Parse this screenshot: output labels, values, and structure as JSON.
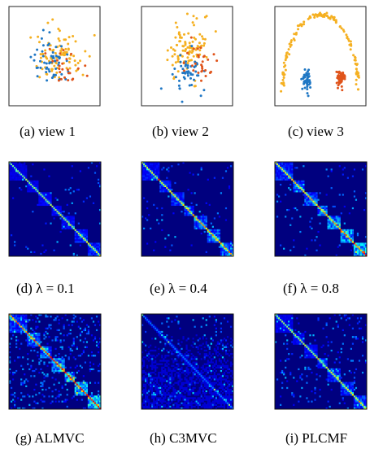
{
  "figure": {
    "panels": [
      {
        "id": "view1",
        "caption": "(a)  view 1"
      },
      {
        "id": "view2",
        "caption": "(b)  view 2"
      },
      {
        "id": "view3",
        "caption": "(c)  view 3"
      },
      {
        "id": "lambda01",
        "caption": "(d)  λ = 0.1"
      },
      {
        "id": "lambda04",
        "caption": "(e)  λ = 0.4"
      },
      {
        "id": "lambda08",
        "caption": "(f)  λ = 0.8"
      },
      {
        "id": "almvc",
        "caption": "(g)  ALMVC"
      },
      {
        "id": "c3mvc",
        "caption": "(h)  C3MVC"
      },
      {
        "id": "plcmf",
        "caption": "(i)  PLCMF"
      }
    ]
  },
  "chart_data": [
    {
      "type": "scatter",
      "panel": "view1",
      "series_colors": {
        "cluster1": "#f5b021",
        "cluster2": "#1f77c4",
        "cluster3": "#e0541b"
      },
      "clusters": [
        {
          "color_key": "cluster1",
          "count": 90,
          "center": [
            0.55,
            0.48
          ],
          "spread": [
            0.25,
            0.25
          ],
          "shape": "blob"
        },
        {
          "color_key": "cluster2",
          "count": 55,
          "center": [
            0.45,
            0.55
          ],
          "spread": [
            0.2,
            0.22
          ],
          "shape": "blob"
        },
        {
          "color_key": "cluster3",
          "count": 25,
          "center": [
            0.6,
            0.6
          ],
          "spread": [
            0.2,
            0.2
          ],
          "shape": "blob"
        }
      ]
    },
    {
      "type": "scatter",
      "panel": "view2",
      "series_colors": {
        "cluster1": "#f5b021",
        "cluster2": "#1f77c4",
        "cluster3": "#e0541b"
      },
      "clusters": [
        {
          "color_key": "cluster1",
          "count": 100,
          "center": [
            0.5,
            0.45
          ],
          "spread": [
            0.22,
            0.3
          ],
          "shape": "blob"
        },
        {
          "color_key": "cluster2",
          "count": 50,
          "center": [
            0.5,
            0.65
          ],
          "spread": [
            0.2,
            0.22
          ],
          "shape": "blob"
        },
        {
          "color_key": "cluster3",
          "count": 30,
          "center": [
            0.6,
            0.6
          ],
          "spread": [
            0.2,
            0.22
          ],
          "shape": "blob"
        }
      ]
    },
    {
      "type": "scatter",
      "panel": "view3",
      "series_colors": {
        "cluster1": "#f5b021",
        "cluster2": "#1f77c4",
        "cluster3": "#e0541b"
      },
      "clusters": [
        {
          "color_key": "cluster1",
          "count": 130,
          "center": [
            0.5,
            0.9
          ],
          "spread": [
            0.42,
            0.82
          ],
          "shape": "arc"
        },
        {
          "color_key": "cluster2",
          "count": 55,
          "center": [
            0.35,
            0.74
          ],
          "spread": [
            0.04,
            0.1
          ],
          "shape": "blob"
        },
        {
          "color_key": "cluster3",
          "count": 55,
          "center": [
            0.72,
            0.72
          ],
          "spread": [
            0.05,
            0.09
          ],
          "shape": "blob"
        }
      ]
    },
    {
      "type": "heatmap",
      "panel": "lambda01",
      "colormap": [
        "#00007f",
        "#0000ff",
        "#00ffff",
        "#ffff00",
        "#ff0000"
      ],
      "blocks": [
        0.2,
        0.12,
        0.14,
        0.12,
        0.14,
        0.14,
        0.14
      ],
      "block_strength": 0.25,
      "diag_strength": 0.7,
      "noise": 0.03
    },
    {
      "type": "heatmap",
      "panel": "lambda04",
      "colormap": [
        "#00007f",
        "#0000ff",
        "#00ffff",
        "#ffff00",
        "#ff0000"
      ],
      "blocks": [
        0.2,
        0.12,
        0.14,
        0.12,
        0.14,
        0.14,
        0.14
      ],
      "block_strength": 0.4,
      "diag_strength": 0.75,
      "noise": 0.03
    },
    {
      "type": "heatmap",
      "panel": "lambda08",
      "colormap": [
        "#00007f",
        "#0000ff",
        "#00ffff",
        "#ffff00",
        "#ff0000"
      ],
      "blocks": [
        0.2,
        0.12,
        0.14,
        0.12,
        0.14,
        0.14,
        0.14
      ],
      "block_strength": 0.5,
      "diag_strength": 0.8,
      "noise": 0.03
    },
    {
      "type": "heatmap",
      "panel": "almvc",
      "colormap": [
        "#00007f",
        "#0000ff",
        "#00ffff",
        "#ffff00",
        "#ff0000"
      ],
      "blocks": [
        0.2,
        0.14,
        0.12,
        0.14,
        0.12,
        0.14,
        0.14
      ],
      "block_strength": 0.55,
      "diag_strength": 0.95,
      "noise": 0.12
    },
    {
      "type": "heatmap",
      "panel": "c3mvc",
      "colormap": [
        "#00007f",
        "#0000ff",
        "#00ffff",
        "#ffff00",
        "#ff0000"
      ],
      "blocks": [
        1.0
      ],
      "block_strength": 0.08,
      "diag_strength": 0.35,
      "noise": 0.06
    },
    {
      "type": "heatmap",
      "panel": "plcmf",
      "colormap": [
        "#00007f",
        "#0000ff",
        "#00ffff",
        "#ffff00",
        "#ff0000"
      ],
      "blocks": [
        0.2,
        0.12,
        0.14,
        0.12,
        0.14,
        0.14,
        0.14
      ],
      "block_strength": 0.3,
      "diag_strength": 0.7,
      "noise": 0.06
    }
  ]
}
